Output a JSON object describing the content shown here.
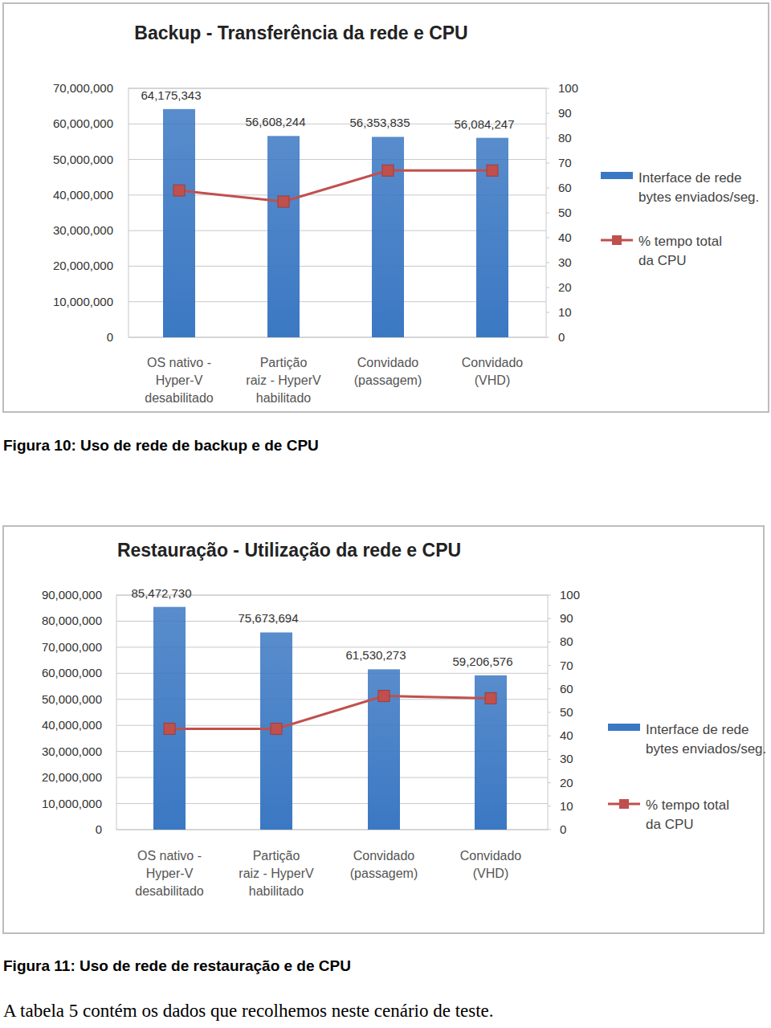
{
  "chart_data": [
    {
      "type": "bar",
      "title": "Backup - Transferência da rede e CPU",
      "categories": [
        "OS nativo -\nHyper-V\ndesabilitado",
        "Partição\nraiz - HyperV\nhabilitado",
        "Convidado\n(passagem)",
        "Convidado\n(VHD)"
      ],
      "series": [
        {
          "name": "Interface de rede\nbytes enviados/seg.",
          "type": "bar",
          "color": "#3b78c3",
          "values": [
            64175343,
            56608244,
            56353835,
            56084247
          ],
          "value_labels": [
            "64,175,343",
            "56,608,244",
            "56,353,835",
            "56,084,247"
          ]
        },
        {
          "name": "% tempo total\nda CPU",
          "type": "line",
          "axis": "y2",
          "color": "#c0504d",
          "marker": "square",
          "values": [
            59,
            54.5,
            67,
            67
          ]
        }
      ],
      "ylim": [
        0,
        70000000
      ],
      "yticks": [
        0,
        {
          "value": 10000000,
          "label": "10,000,000"
        },
        {
          "value": 20000000,
          "label": "20,000,000"
        },
        {
          "value": 30000000,
          "label": "30,000,000"
        },
        {
          "value": 40000000,
          "label": "40,000,000"
        },
        {
          "value": 50000000,
          "label": "50,000,000"
        },
        {
          "value": 60000000,
          "label": "60,000,000"
        },
        {
          "value": 70000000,
          "label": "70,000,000"
        }
      ],
      "y2lim": [
        0,
        100
      ],
      "y2ticks": [
        0,
        10,
        20,
        30,
        40,
        50,
        60,
        70,
        80,
        90,
        100
      ],
      "grid": true,
      "legend": "right",
      "data_labels": true
    },
    {
      "type": "bar",
      "title": "Restauração - Utilização da rede e CPU",
      "categories": [
        "OS nativo -\nHyper-V\ndesabilitado",
        "Partição\nraiz - HyperV\nhabilitado",
        "Convidado\n(passagem)",
        "Convidado\n(VHD)"
      ],
      "series": [
        {
          "name": "Interface de rede\nbytes enviados/seg.",
          "type": "bar",
          "color": "#3b78c3",
          "values": [
            85472730,
            75673694,
            61530273,
            59206576
          ],
          "value_labels": [
            "85,472,730",
            "75,673,694",
            "61,530,273",
            "59,206,576"
          ]
        },
        {
          "name": "% tempo total\nda CPU",
          "type": "line",
          "axis": "y2",
          "color": "#c0504d",
          "marker": "square",
          "values": [
            43,
            43,
            57,
            56
          ]
        }
      ],
      "ylim": [
        0,
        90000000
      ],
      "yticks": [
        0,
        {
          "value": 10000000,
          "label": "10,000,000"
        },
        {
          "value": 20000000,
          "label": "20,000,000"
        },
        {
          "value": 30000000,
          "label": "30,000,000"
        },
        {
          "value": 40000000,
          "label": "40,000,000"
        },
        {
          "value": 50000000,
          "label": "50,000,000"
        },
        {
          "value": 60000000,
          "label": "60,000,000"
        },
        {
          "value": 70000000,
          "label": "70,000,000"
        },
        {
          "value": 80000000,
          "label": "80,000,000"
        },
        {
          "value": 90000000,
          "label": "90,000,000"
        }
      ],
      "y2lim": [
        0,
        100
      ],
      "y2ticks": [
        0,
        10,
        20,
        30,
        40,
        50,
        60,
        70,
        80,
        90,
        100
      ],
      "grid": true,
      "legend": "right",
      "data_labels": true
    }
  ],
  "captions": [
    "Figura 10: Uso de rede de backup e de CPU",
    "Figura 11: Uso de rede de restauração e de CPU"
  ],
  "body_text": "A tabela 5 contém os dados que recolhemos neste cenário de teste."
}
